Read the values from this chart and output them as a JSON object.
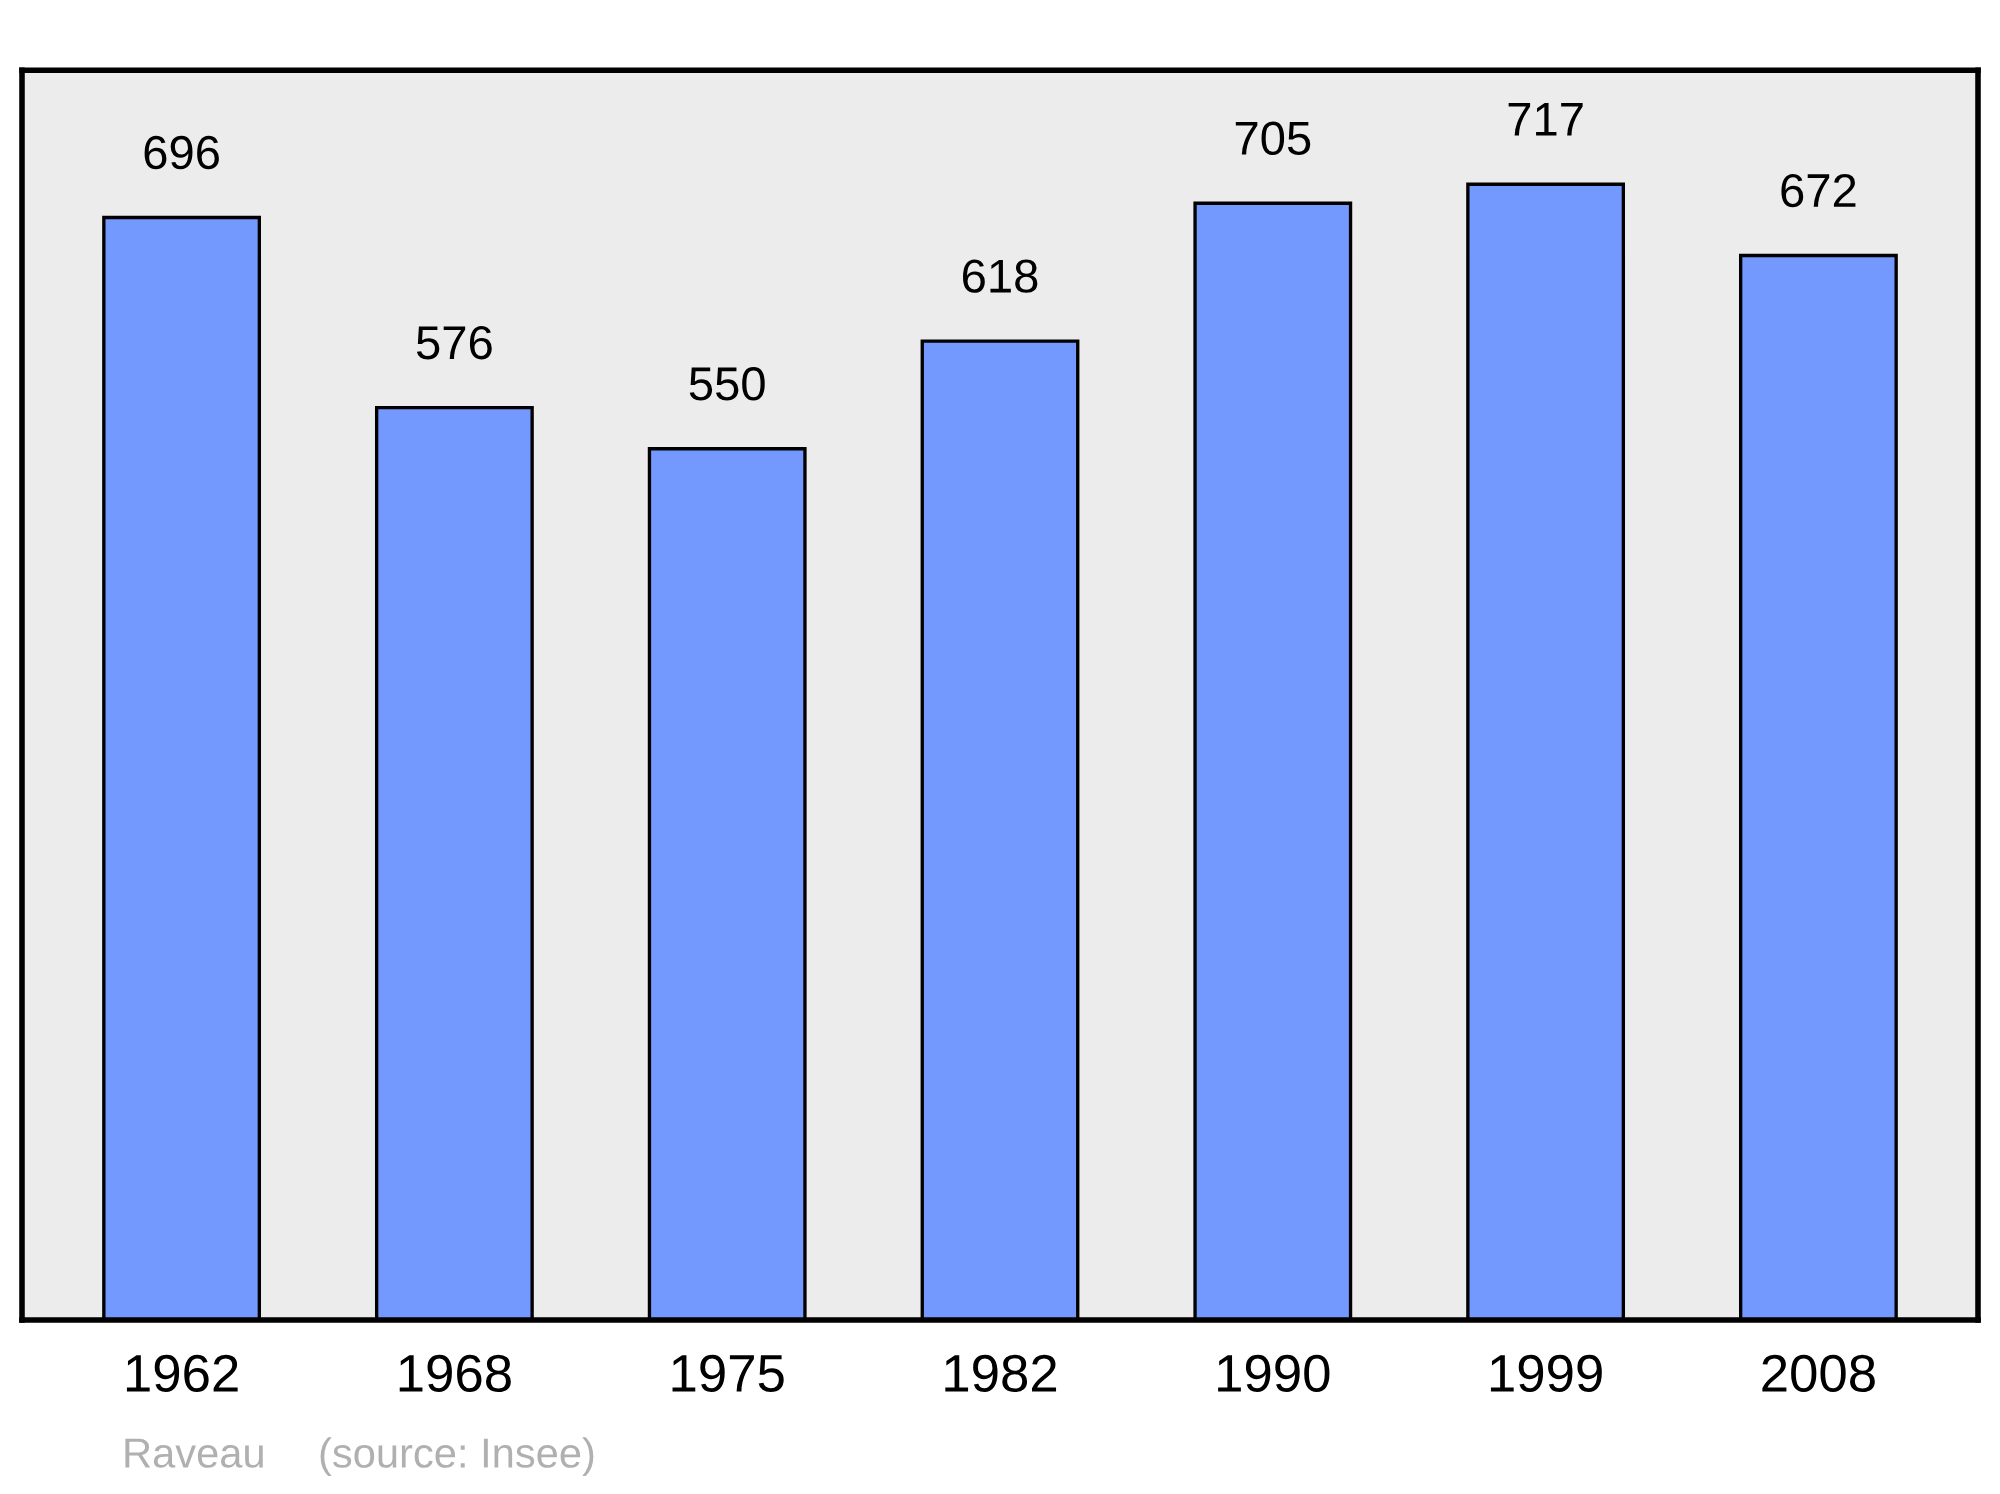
{
  "chart_data": {
    "type": "bar",
    "categories": [
      "1962",
      "1968",
      "1975",
      "1982",
      "1990",
      "1999",
      "2008"
    ],
    "values": [
      696,
      576,
      550,
      618,
      705,
      717,
      672
    ],
    "color": "#7399ff",
    "ylim": [
      0,
      789
    ],
    "data_labels": true,
    "tick_labels": "x",
    "grid": false,
    "annotations": [
      "Raveau",
      "(source: Insee)"
    ]
  }
}
